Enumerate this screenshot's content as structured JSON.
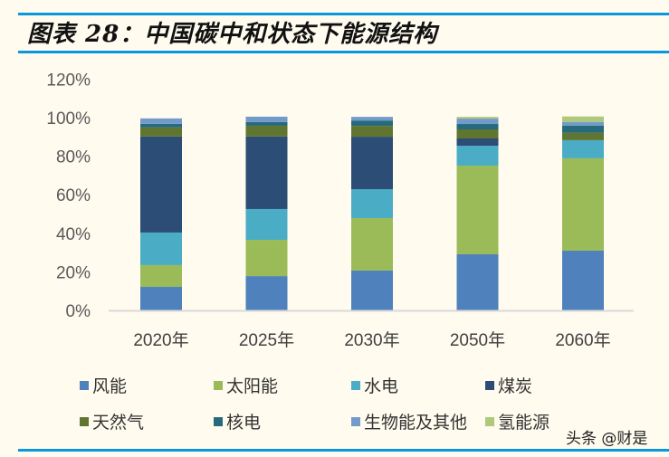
{
  "title": "图表 28：中国碳中和状态下能源结构",
  "watermark": "头条 @财是",
  "chart_data": {
    "type": "bar",
    "stacked": true,
    "title": "",
    "xlabel": "",
    "ylabel": "",
    "ylim": [
      0,
      120
    ],
    "yticks": [
      "0%",
      "20%",
      "40%",
      "60%",
      "80%",
      "100%",
      "120%"
    ],
    "grid": false,
    "legend_position": "bottom",
    "categories": [
      "2020年",
      "2025年",
      "2030年",
      "2050年",
      "2060年"
    ],
    "series": [
      {
        "name": "风能",
        "color": "#4f81bd",
        "values": [
          12.2,
          17.8,
          20.7,
          29.1,
          31.0
        ]
      },
      {
        "name": "太阳能",
        "color": "#9bbb59",
        "values": [
          11.3,
          18.8,
          27.2,
          46.0,
          47.9
        ]
      },
      {
        "name": "水电",
        "color": "#4bacc6",
        "values": [
          16.9,
          16.0,
          15.0,
          10.3,
          9.4
        ]
      },
      {
        "name": "煤炭",
        "color": "#2c4d75",
        "values": [
          49.8,
          37.6,
          27.2,
          3.8,
          0
        ]
      },
      {
        "name": "天然气",
        "color": "#5f7530",
        "values": [
          4.7,
          5.6,
          5.6,
          4.7,
          3.8
        ]
      },
      {
        "name": "核电",
        "color": "#276a7c",
        "values": [
          1.9,
          1.9,
          2.8,
          2.8,
          3.8
        ]
      },
      {
        "name": "生物能及其他",
        "color": "#729aca",
        "values": [
          2.8,
          2.8,
          1.9,
          2.8,
          1.9
        ]
      },
      {
        "name": "氢能源",
        "color": "#afc97a",
        "values": [
          0,
          0,
          0,
          0.9,
          2.8
        ]
      }
    ]
  }
}
